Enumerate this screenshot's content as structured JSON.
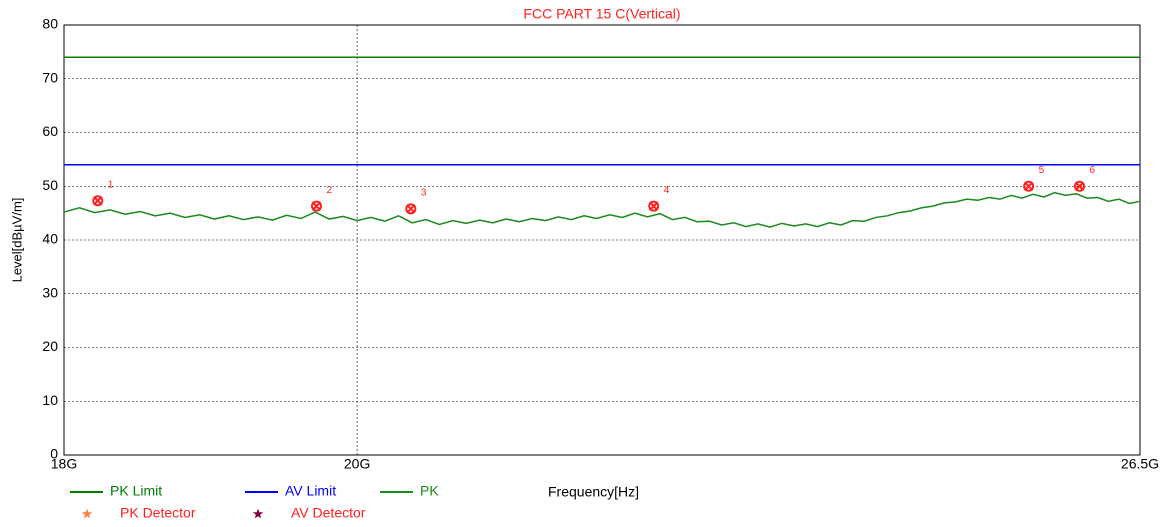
{
  "chart_data": {
    "type": "line",
    "title": "FCC PART 15 C(Vertical)",
    "xlabel": "Frequency[Hz]",
    "ylabel": "Level[dBµV/m]",
    "xscale": "log",
    "xlim": [
      18000000000.0,
      26500000000.0
    ],
    "xticks": [
      {
        "value": 18000000000.0,
        "label": "18G"
      },
      {
        "value": 20000000000.0,
        "label": "20G"
      },
      {
        "value": 26500000000.0,
        "label": "26.5G"
      }
    ],
    "ylim": [
      0,
      80
    ],
    "yticks": [
      0,
      10,
      20,
      30,
      40,
      50,
      60,
      70,
      80
    ],
    "grid": true,
    "series": [
      {
        "name": "PK Limit",
        "color": "#008000",
        "x": [
          18000000000.0,
          26500000000.0
        ],
        "values": [
          74,
          74
        ]
      },
      {
        "name": "AV Limit",
        "color": "#0000ff",
        "x": [
          18000000000.0,
          26500000000.0
        ],
        "values": [
          54,
          54
        ]
      },
      {
        "name": "PK",
        "color": "#1a8a1a",
        "x": [
          18000000000.0,
          18100000000.0,
          18200000000.0,
          18300000000.0,
          18400000000.0,
          18500000000.0,
          18600000000.0,
          18700000000.0,
          18800000000.0,
          18900000000.0,
          19000000000.0,
          19100000000.0,
          19200000000.0,
          19300000000.0,
          19400000000.0,
          19500000000.0,
          19600000000.0,
          19700000000.0,
          19800000000.0,
          19900000000.0,
          20000000000.0,
          20100000000.0,
          20200000000.0,
          20300000000.0,
          20400000000.0,
          20500000000.0,
          20600000000.0,
          20700000000.0,
          20800000000.0,
          20900000000.0,
          21000000000.0,
          21100000000.0,
          21200000000.0,
          21300000000.0,
          21400000000.0,
          21500000000.0,
          21600000000.0,
          21700000000.0,
          21800000000.0,
          21900000000.0,
          22000000000.0,
          22100000000.0,
          22200000000.0,
          22300000000.0,
          22400000000.0,
          22500000000.0,
          22600000000.0,
          22700000000.0,
          22800000000.0,
          22900000000.0,
          23000000000.0,
          23100000000.0,
          23200000000.0,
          23300000000.0,
          23400000000.0,
          23500000000.0,
          23600000000.0,
          23700000000.0,
          23800000000.0,
          23900000000.0,
          24000000000.0,
          24100000000.0,
          24200000000.0,
          24300000000.0,
          24400000000.0,
          24500000000.0,
          24600000000.0,
          24700000000.0,
          24800000000.0,
          24900000000.0,
          25000000000.0,
          25100000000.0,
          25200000000.0,
          25300000000.0,
          25400000000.0,
          25500000000.0,
          25600000000.0,
          25700000000.0,
          25800000000.0,
          25900000000.0,
          26000000000.0,
          26100000000.0,
          26200000000.0,
          26300000000.0,
          26400000000.0,
          26500000000.0
        ],
        "values": [
          45.2,
          46.0,
          45.1,
          45.6,
          44.8,
          45.3,
          44.5,
          45.0,
          44.2,
          44.7,
          43.9,
          44.5,
          43.8,
          44.3,
          43.7,
          44.6,
          44.0,
          45.2,
          43.9,
          44.4,
          43.6,
          44.2,
          43.5,
          44.5,
          43.2,
          43.8,
          42.9,
          43.6,
          43.1,
          43.7,
          43.2,
          43.9,
          43.4,
          44.0,
          43.6,
          44.3,
          43.8,
          44.5,
          44.0,
          44.7,
          44.2,
          45.0,
          44.3,
          44.9,
          43.8,
          44.2,
          43.4,
          43.5,
          42.8,
          43.2,
          42.5,
          43.0,
          42.4,
          43.1,
          42.6,
          43.0,
          42.5,
          43.2,
          42.8,
          43.6,
          43.5,
          44.2,
          44.5,
          45.1,
          45.4,
          46.0,
          46.3,
          46.9,
          47.1,
          47.6,
          47.4,
          47.9,
          47.6,
          48.3,
          47.8,
          48.5,
          48.0,
          48.8,
          48.3,
          48.6,
          47.8,
          47.9,
          47.2,
          47.6,
          46.8,
          47.2
        ]
      }
    ],
    "markers": [
      {
        "name": "PK Detector",
        "color": "#ff8040",
        "x": [
          18220000000.0,
          19710000000.0,
          20390000000.0,
          22250000000.0,
          25460000000.0,
          25930000000.0
        ],
        "values": [
          47.3,
          46.3,
          45.8,
          46.3,
          50.0,
          50.0
        ],
        "labels": [
          "1",
          "2",
          "3",
          "4",
          "5",
          "6"
        ]
      },
      {
        "name": "AV Detector",
        "color": "#800040",
        "x": [],
        "values": [],
        "labels": []
      }
    ]
  }
}
